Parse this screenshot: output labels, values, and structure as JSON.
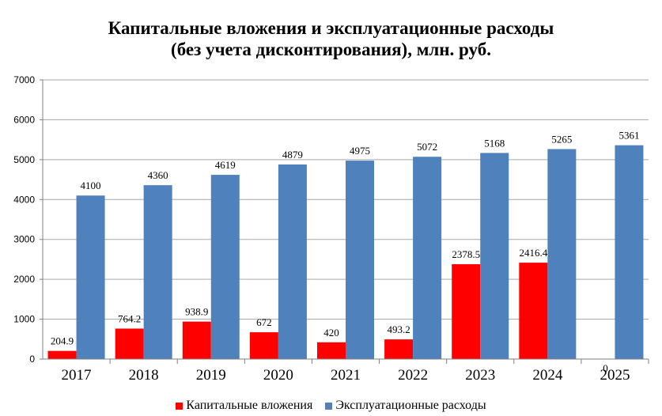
{
  "chart_data": {
    "type": "bar",
    "title_line1": "Капитальные вложения и эксплуатационные расходы",
    "title_line2": "(без учета  дисконтирования), млн. руб.",
    "categories": [
      "2017",
      "2018",
      "2019",
      "2020",
      "2021",
      "2022",
      "2023",
      "2024",
      "2025"
    ],
    "series": [
      {
        "name": "Капитальные вложения",
        "color": "#ff0000",
        "values": [
          204.9,
          764.2,
          938.9,
          672,
          420,
          493.2,
          2378.5,
          2416.4,
          0
        ],
        "labels": [
          "204.9",
          "764.2",
          "938.9",
          "672",
          "420",
          "493.2",
          "2378.5",
          "2416.4",
          "0"
        ]
      },
      {
        "name": "Эксплуатационные расходы",
        "color": "#4f81bd",
        "values": [
          4100,
          4360,
          4619,
          4879,
          4975,
          5072,
          5168,
          5265,
          5361
        ],
        "labels": [
          "4100",
          "4360",
          "4619",
          "4879",
          "4975",
          "5072",
          "5168",
          "5265",
          "5361"
        ]
      }
    ],
    "y_ticks": [
      "0",
      "1000",
      "2000",
      "3000",
      "4000",
      "5000",
      "6000",
      "7000"
    ],
    "ylim": [
      0,
      7000
    ],
    "grid": true,
    "legend_position": "bottom"
  }
}
